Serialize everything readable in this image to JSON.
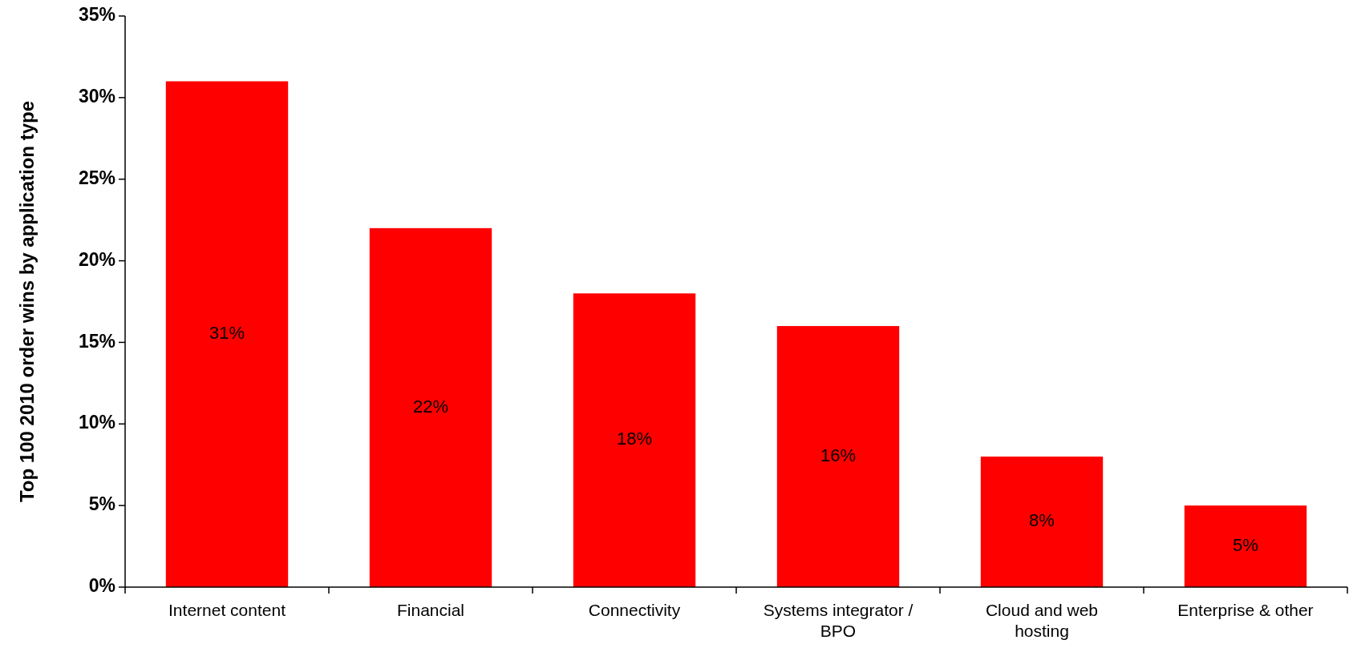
{
  "chart_data": {
    "type": "bar",
    "ylabel": "Top 100 2010 order wins by application type",
    "categories": [
      "Internet content",
      "Financial",
      "Connectivity",
      "Systems integrator / BPO",
      "Cloud and web hosting",
      "Enterprise & other"
    ],
    "values": [
      31,
      22,
      18,
      16,
      8,
      5
    ],
    "color": "#ff0000",
    "value_labels": [
      "31%",
      "22%",
      "18%",
      "16%",
      "8%",
      "5%"
    ],
    "ylim": [
      0,
      35
    ],
    "yticks": [
      {
        "value": 0,
        "label": "0%"
      },
      {
        "value": 5,
        "label": "5%"
      },
      {
        "value": 10,
        "label": "10%"
      },
      {
        "value": 15,
        "label": "15%"
      },
      {
        "value": 20,
        "label": "20%"
      },
      {
        "value": 25,
        "label": "25%"
      },
      {
        "value": 30,
        "label": "30%"
      },
      {
        "value": 35,
        "label": "35%"
      }
    ],
    "grid": false
  }
}
